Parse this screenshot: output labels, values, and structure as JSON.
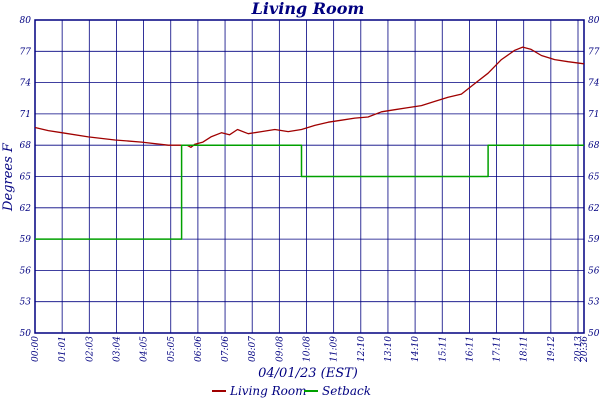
{
  "chart_data": {
    "type": "line",
    "title": "Living Room",
    "xlabel": "04/01/23 (EST)",
    "ylabel": "Degrees F",
    "ylim": [
      50,
      80
    ],
    "y_ticks": [
      "80",
      "77",
      "74",
      "71",
      "68",
      "65",
      "62",
      "59",
      "56",
      "53",
      "50"
    ],
    "x_ticks": [
      "00:00",
      "01:01",
      "02:03",
      "03:04",
      "04:05",
      "05:05",
      "06:06",
      "07:06",
      "08:07",
      "09:08",
      "10:08",
      "11:09",
      "12:10",
      "13:10",
      "14:10",
      "15:11",
      "16:11",
      "17:11",
      "18:11",
      "19:12",
      "20:13",
      "20:36"
    ],
    "x_hours_range": [
      0,
      20.6
    ],
    "grid": true,
    "legend_position": "bottom",
    "colors": {
      "frame": "#000080",
      "grid": "#000080",
      "living_room": "#a00000",
      "setback": "#00a000"
    },
    "series": [
      {
        "name": "Living Room",
        "x": [
          0,
          0.5,
          1.0,
          2.0,
          3.0,
          4.0,
          5.0,
          5.7,
          5.85,
          6.0,
          6.3,
          6.6,
          7.0,
          7.3,
          7.6,
          8.0,
          8.5,
          9.0,
          9.5,
          10.0,
          10.5,
          11.0,
          11.5,
          12.0,
          12.5,
          13.0,
          13.5,
          14.0,
          14.5,
          15.0,
          15.5,
          16.0,
          16.5,
          17.0,
          17.5,
          18.0,
          18.3,
          18.6,
          19.0,
          19.5,
          20.0,
          20.6
        ],
        "y": [
          69.7,
          69.4,
          69.2,
          68.8,
          68.5,
          68.3,
          68.0,
          68.0,
          67.8,
          68.1,
          68.3,
          68.8,
          69.2,
          69.0,
          69.5,
          69.1,
          69.3,
          69.5,
          69.3,
          69.5,
          69.9,
          70.2,
          70.4,
          70.6,
          70.7,
          71.2,
          71.4,
          71.6,
          71.8,
          72.2,
          72.6,
          72.9,
          73.9,
          74.9,
          76.2,
          77.1,
          77.4,
          77.2,
          76.6,
          76.2,
          76.0,
          75.8
        ]
      },
      {
        "name": "Setback",
        "x": [
          0,
          5.5,
          5.5,
          10.0,
          10.0,
          17.0,
          17.0,
          20.6
        ],
        "y": [
          59,
          59,
          68,
          68,
          65,
          65,
          68,
          68
        ]
      }
    ]
  }
}
